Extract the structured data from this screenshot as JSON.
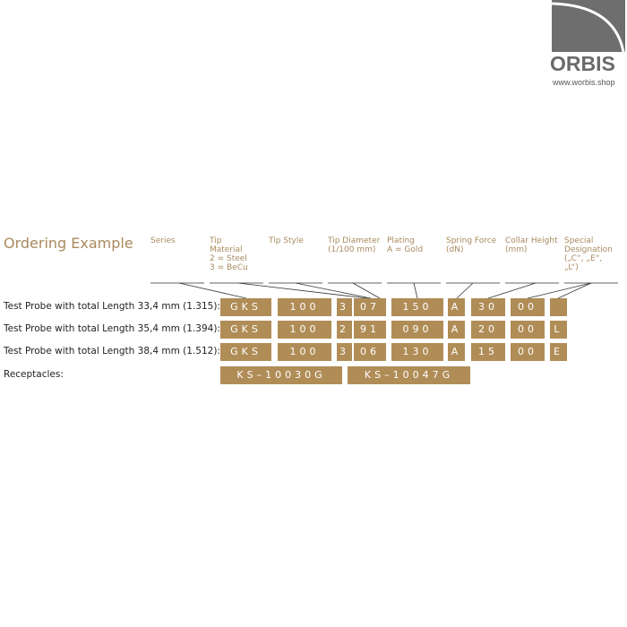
{
  "logo": {
    "brand": "ORBIS",
    "url": "www.worbis.shop"
  },
  "title": "Ordering Example",
  "headers": [
    "Series",
    "Tip\nMaterial\n2 = Steel\n3 = BeCu",
    "Tip Style",
    "Tip Diameter\n(1/100 mm)",
    "Plating\nA = Gold",
    "Spring Force\n(dN)",
    "Collar Height\n(mm)",
    "Special\nDesignation\n(„C“, „E“,\n„L“)"
  ],
  "rows": [
    {
      "label": "Test Probe with total Length 33,4 mm (1.315):",
      "codes": [
        "GKS",
        "100",
        "3",
        "07",
        "150",
        "A",
        "30",
        "00",
        ""
      ]
    },
    {
      "label": "Test Probe with total Length 35,4 mm (1.394):",
      "codes": [
        "GKS",
        "100",
        "2",
        "91",
        "090",
        "A",
        "20",
        "00",
        "L"
      ]
    },
    {
      "label": "Test Probe with total Length 38,4 mm (1.512):",
      "codes": [
        "GKS",
        "100",
        "3",
        "06",
        "130",
        "A",
        "15",
        "00",
        "E"
      ]
    }
  ],
  "receptacles": {
    "label": "Receptacles:",
    "codes": [
      "KS–10030G",
      "KS–10047G"
    ]
  },
  "colors": {
    "accent": "#b08d57",
    "heading": "#a98a5e",
    "logo": "#6e6e6e"
  }
}
